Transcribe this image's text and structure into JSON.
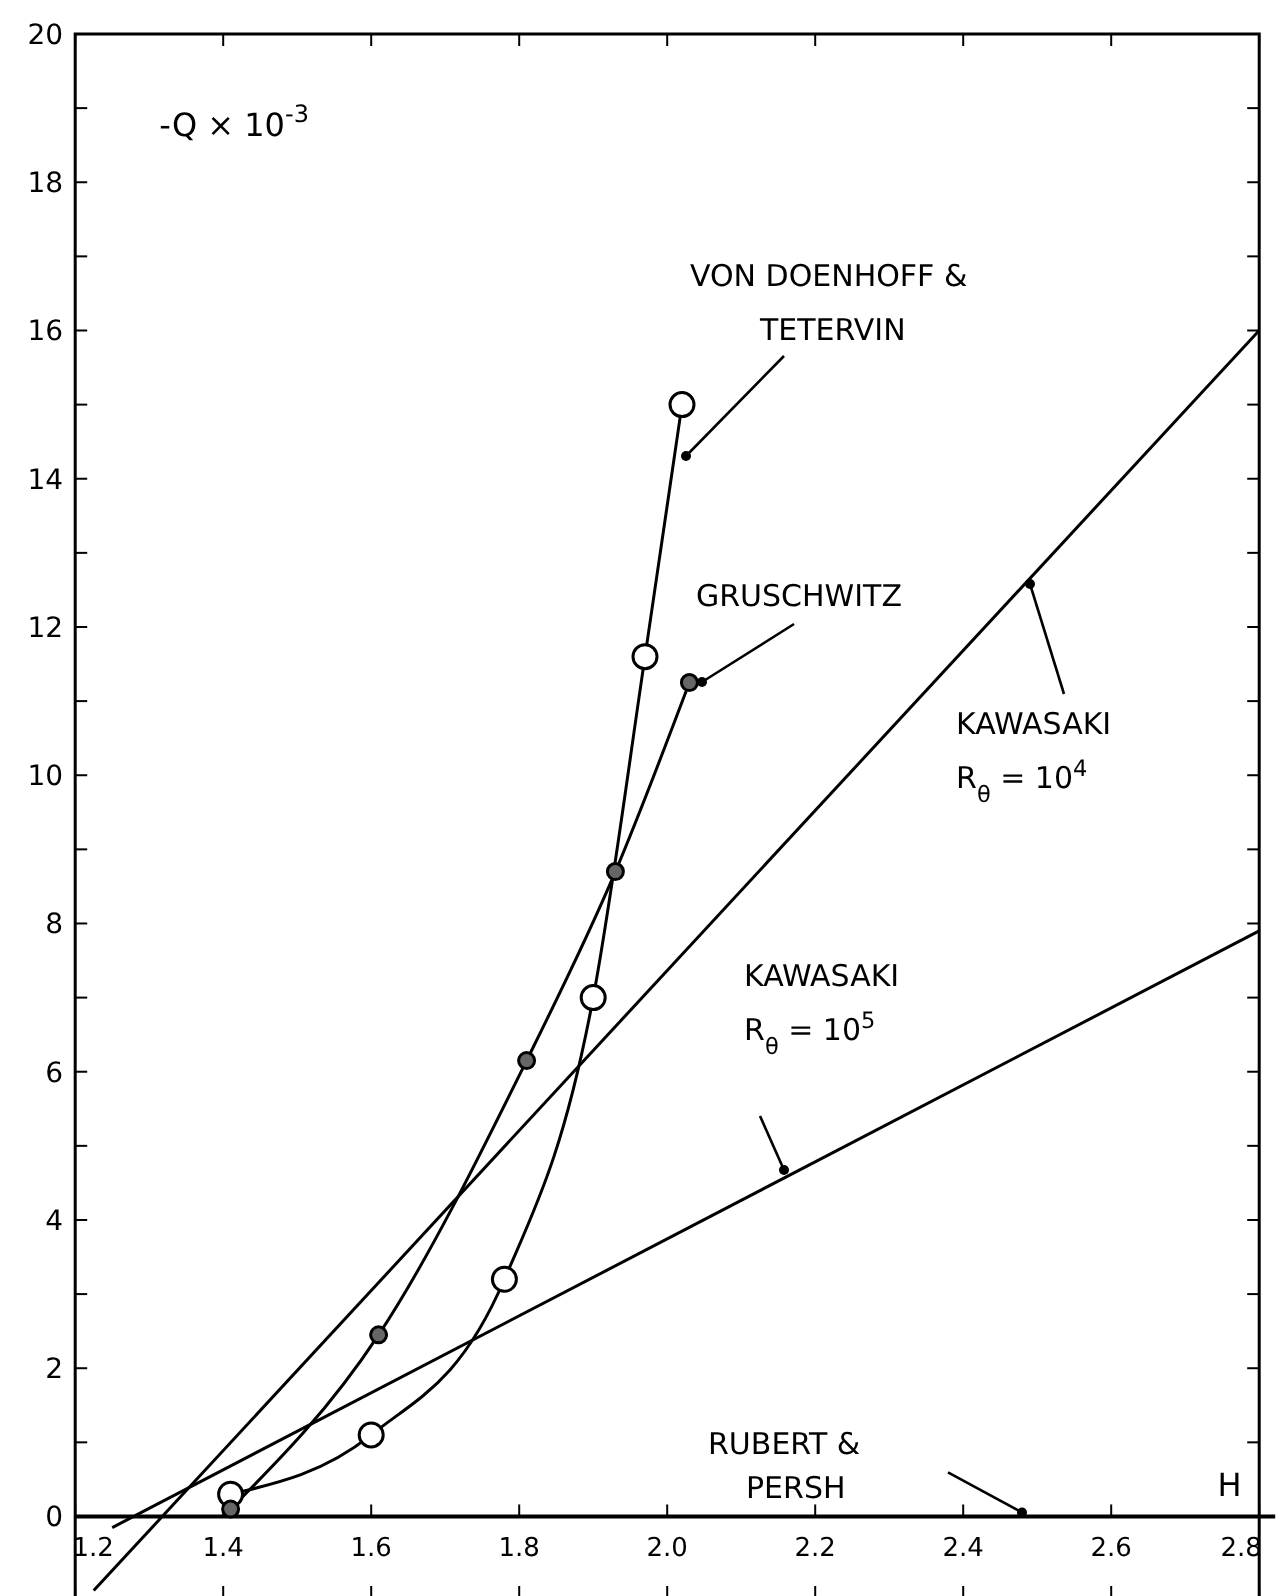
{
  "chart_data": {
    "type": "line",
    "xlabel": "H",
    "ylabel": "-Q × 10$^{-3}$",
    "xlim": [
      1.2,
      2.8
    ],
    "ylim": [
      -1.1,
      20
    ],
    "xticks": [
      1.2,
      1.4,
      1.6,
      1.8,
      {
        "value": 2.0,
        "label": "2.0"
      },
      2.2,
      2.4,
      2.6,
      2.8
    ],
    "yticks": [
      0,
      {
        "value": 1,
        "label": null
      },
      2,
      {
        "value": 3,
        "label": null
      },
      4,
      {
        "value": 5,
        "label": null
      },
      6,
      {
        "value": 7,
        "label": null
      },
      8,
      {
        "value": 9,
        "label": null
      },
      10,
      {
        "value": 11,
        "label": null
      },
      12,
      {
        "value": 13,
        "label": null
      },
      14,
      {
        "value": 15,
        "label": null
      },
      16,
      {
        "value": 17,
        "label": null
      },
      18,
      {
        "value": 19,
        "label": null
      },
      20
    ],
    "grid": false,
    "line_style": "solid",
    "series": [
      {
        "name": "VON DOENHOFF & TETERVIN",
        "color": "#000000",
        "marker": "circle",
        "x": [
          1.41,
          1.6,
          1.78,
          1.9,
          1.97,
          2.02
        ],
        "values": [
          0.3,
          1.1,
          3.2,
          7.0,
          11.6,
          15.0
        ]
      },
      {
        "name": "GRUSCHWITZ",
        "color": "#000000",
        "marker": "circle",
        "x": [
          1.41,
          1.61,
          1.81,
          1.93,
          2.03
        ],
        "values": [
          0.1,
          2.45,
          6.15,
          8.7,
          11.25
        ]
      },
      {
        "name": "KAWASAKI R$_{θ}$ = 10$^{4}$",
        "color": "#000000",
        "marker": "none",
        "x": [
          1.225,
          2.8
        ],
        "values": [
          -1.0,
          16.0
        ]
      },
      {
        "name": "KAWASAKI R$_{θ}$ = 10$^{5}$",
        "color": "#000000",
        "marker": "none",
        "x": [
          1.25,
          2.8
        ],
        "values": [
          -0.15,
          7.9
        ]
      }
    ],
    "annotations": [
      "RUBERT & PERSH"
    ]
  }
}
